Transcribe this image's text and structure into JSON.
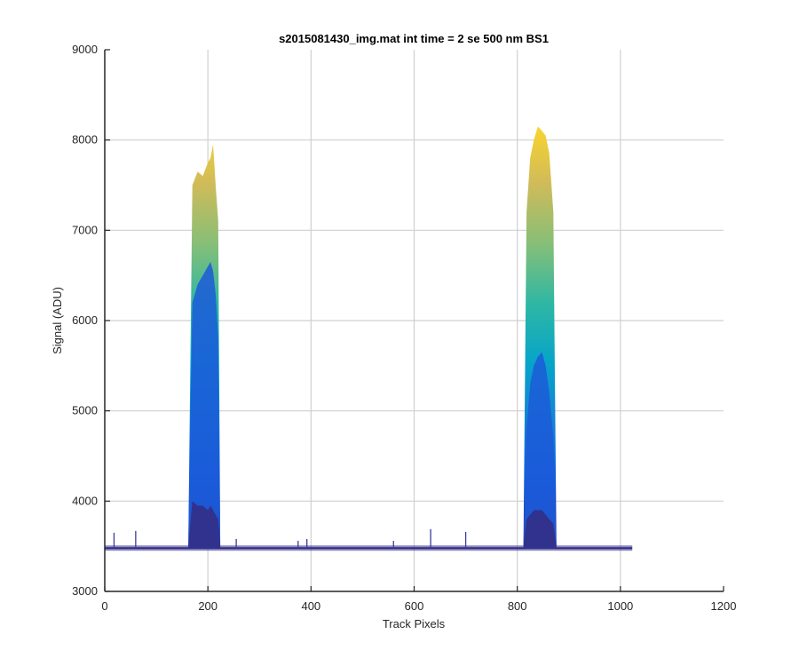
{
  "chart_data": {
    "type": "area",
    "title": "s2015081430_img.mat int time = 2 se  500 nm BS1",
    "xlabel": "Track Pixels",
    "ylabel": "Signal (ADU)",
    "xlim": [
      0,
      1200
    ],
    "ylim": [
      3000,
      9000
    ],
    "xticks": [
      "0",
      "200",
      "400",
      "600",
      "800",
      "1000",
      "1200"
    ],
    "yticks": [
      "3000",
      "4000",
      "5000",
      "6000",
      "7000",
      "8000",
      "9000"
    ],
    "grid": true,
    "colormap": [
      "#352a87",
      "#0f5cdd",
      "#1481d6",
      "#06a4ca",
      "#2eb7a4",
      "#87bf77",
      "#d1bb59",
      "#fbd72a"
    ],
    "baseline": {
      "x_start": 0,
      "x_end": 1023,
      "value": 3480
    },
    "peaks": [
      {
        "x": [
          162,
          170,
          180,
          190,
          200,
          205,
          210,
          215,
          220,
          224
        ],
        "upper": [
          3500,
          7500,
          7650,
          7600,
          7750,
          7800,
          7950,
          7500,
          7100,
          3500
        ],
        "mid": [
          3500,
          6200,
          6400,
          6500,
          6600,
          6650,
          6550,
          6300,
          5800,
          3500
        ],
        "low": [
          3500,
          4000,
          3950,
          3950,
          3900,
          3950,
          3900,
          3850,
          3800,
          3500
        ]
      },
      {
        "x": [
          812,
          818,
          825,
          832,
          840,
          848,
          855,
          862,
          870,
          876
        ],
        "upper": [
          3500,
          7200,
          7800,
          8000,
          8150,
          8100,
          8050,
          7850,
          7200,
          3500
        ],
        "mid": [
          3500,
          4800,
          5300,
          5500,
          5600,
          5650,
          5500,
          5200,
          4700,
          3500
        ],
        "low": [
          3500,
          3800,
          3850,
          3900,
          3900,
          3900,
          3850,
          3800,
          3750,
          3500
        ]
      }
    ],
    "spikes": [
      {
        "x": 18,
        "value": 3650
      },
      {
        "x": 60,
        "value": 3670
      },
      {
        "x": 255,
        "value": 3580
      },
      {
        "x": 375,
        "value": 3560
      },
      {
        "x": 392,
        "value": 3580
      },
      {
        "x": 560,
        "value": 3560
      },
      {
        "x": 632,
        "value": 3690
      },
      {
        "x": 700,
        "value": 3660
      }
    ]
  }
}
